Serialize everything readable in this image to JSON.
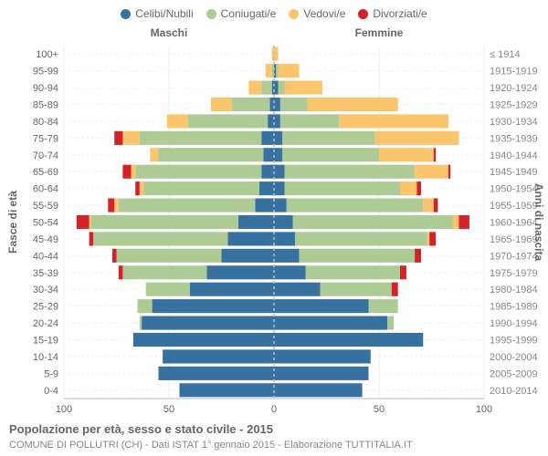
{
  "legend": [
    {
      "key": "celibi",
      "label": "Celibi/Nubili",
      "color": "#37719f"
    },
    {
      "key": "coniugati",
      "label": "Coniugati/e",
      "color": "#aecb95"
    },
    {
      "key": "vedovi",
      "label": "Vedovi/e",
      "color": "#fac56c"
    },
    {
      "key": "divorziati",
      "label": "Divorziati/e",
      "color": "#d2232a"
    }
  ],
  "headers": {
    "left": "Maschi",
    "right": "Femmine"
  },
  "axis": {
    "left_label": "Fasce di età",
    "right_label": "Anni di nascita",
    "xmax": 100,
    "xticks": [
      100,
      50,
      0,
      50,
      100
    ],
    "background": "#ffffff",
    "grid_color": "#eeeeee",
    "center_line": "#b8c0c7",
    "bar_height_ratio": 0.82
  },
  "rows": [
    {
      "age": "0-4",
      "year": "2010-2014",
      "M": {
        "cel": 45,
        "con": 0,
        "ved": 0,
        "div": 0
      },
      "F": {
        "cel": 42,
        "con": 0,
        "ved": 0,
        "div": 0
      }
    },
    {
      "age": "5-9",
      "year": "2005-2009",
      "M": {
        "cel": 55,
        "con": 0,
        "ved": 0,
        "div": 0
      },
      "F": {
        "cel": 45,
        "con": 0,
        "ved": 0,
        "div": 0
      }
    },
    {
      "age": "10-14",
      "year": "2000-2004",
      "M": {
        "cel": 53,
        "con": 0,
        "ved": 0,
        "div": 0
      },
      "F": {
        "cel": 46,
        "con": 0,
        "ved": 0,
        "div": 0
      }
    },
    {
      "age": "15-19",
      "year": "1995-1999",
      "M": {
        "cel": 67,
        "con": 0,
        "ved": 0,
        "div": 0
      },
      "F": {
        "cel": 71,
        "con": 0,
        "ved": 0,
        "div": 0
      }
    },
    {
      "age": "20-24",
      "year": "1990-1994",
      "M": {
        "cel": 63,
        "con": 1,
        "ved": 0,
        "div": 0
      },
      "F": {
        "cel": 54,
        "con": 3,
        "ved": 0,
        "div": 0
      }
    },
    {
      "age": "25-29",
      "year": "1985-1989",
      "M": {
        "cel": 58,
        "con": 7,
        "ved": 0,
        "div": 0
      },
      "F": {
        "cel": 45,
        "con": 14,
        "ved": 0,
        "div": 0
      }
    },
    {
      "age": "30-34",
      "year": "1980-1984",
      "M": {
        "cel": 40,
        "con": 21,
        "ved": 0,
        "div": 0
      },
      "F": {
        "cel": 22,
        "con": 34,
        "ved": 0,
        "div": 3
      }
    },
    {
      "age": "35-39",
      "year": "1975-1979",
      "M": {
        "cel": 32,
        "con": 40,
        "ved": 0,
        "div": 2
      },
      "F": {
        "cel": 15,
        "con": 45,
        "ved": 0,
        "div": 3
      }
    },
    {
      "age": "40-44",
      "year": "1970-1974",
      "M": {
        "cel": 25,
        "con": 50,
        "ved": 0,
        "div": 2
      },
      "F": {
        "cel": 12,
        "con": 55,
        "ved": 0,
        "div": 3
      }
    },
    {
      "age": "45-49",
      "year": "1965-1969",
      "M": {
        "cel": 22,
        "con": 64,
        "ved": 0,
        "div": 2
      },
      "F": {
        "cel": 10,
        "con": 63,
        "ved": 1,
        "div": 3
      }
    },
    {
      "age": "50-54",
      "year": "1960-1964",
      "M": {
        "cel": 17,
        "con": 70,
        "ved": 1,
        "div": 6
      },
      "F": {
        "cel": 9,
        "con": 76,
        "ved": 3,
        "div": 5
      }
    },
    {
      "age": "55-59",
      "year": "1955-1959",
      "M": {
        "cel": 9,
        "con": 65,
        "ved": 2,
        "div": 3
      },
      "F": {
        "cel": 6,
        "con": 65,
        "ved": 5,
        "div": 2
      }
    },
    {
      "age": "60-64",
      "year": "1950-1954",
      "M": {
        "cel": 7,
        "con": 55,
        "ved": 2,
        "div": 2
      },
      "F": {
        "cel": 5,
        "con": 55,
        "ved": 8,
        "div": 2
      }
    },
    {
      "age": "65-69",
      "year": "1945-1949",
      "M": {
        "cel": 6,
        "con": 60,
        "ved": 2,
        "div": 4
      },
      "F": {
        "cel": 5,
        "con": 62,
        "ved": 16,
        "div": 1
      }
    },
    {
      "age": "70-74",
      "year": "1940-1944",
      "M": {
        "cel": 5,
        "con": 50,
        "ved": 4,
        "div": 0
      },
      "F": {
        "cel": 4,
        "con": 46,
        "ved": 26,
        "div": 1
      }
    },
    {
      "age": "75-79",
      "year": "1935-1939",
      "M": {
        "cel": 6,
        "con": 58,
        "ved": 8,
        "div": 4
      },
      "F": {
        "cel": 4,
        "con": 44,
        "ved": 40,
        "div": 0
      }
    },
    {
      "age": "80-84",
      "year": "1930-1934",
      "M": {
        "cel": 3,
        "con": 38,
        "ved": 10,
        "div": 0
      },
      "F": {
        "cel": 3,
        "con": 28,
        "ved": 52,
        "div": 0
      }
    },
    {
      "age": "85-89",
      "year": "1925-1929",
      "M": {
        "cel": 2,
        "con": 18,
        "ved": 10,
        "div": 0
      },
      "F": {
        "cel": 3,
        "con": 13,
        "ved": 43,
        "div": 0
      }
    },
    {
      "age": "90-94",
      "year": "1920-1924",
      "M": {
        "cel": 1,
        "con": 5,
        "ved": 6,
        "div": 0
      },
      "F": {
        "cel": 2,
        "con": 3,
        "ved": 18,
        "div": 0
      }
    },
    {
      "age": "95-99",
      "year": "1915-1919",
      "M": {
        "cel": 0,
        "con": 1,
        "ved": 3,
        "div": 0
      },
      "F": {
        "cel": 1,
        "con": 1,
        "ved": 10,
        "div": 0
      }
    },
    {
      "age": "100+",
      "year": "≤ 1914",
      "M": {
        "cel": 0,
        "con": 0,
        "ved": 1,
        "div": 0
      },
      "F": {
        "cel": 0,
        "con": 0,
        "ved": 2,
        "div": 0
      }
    }
  ],
  "caption": {
    "line1": "Popolazione per età, sesso e stato civile - 2015",
    "line2": "COMUNE DI POLLUTRI (CH) - Dati ISTAT 1° gennaio 2015 - Elaborazione TUTTITALIA.IT"
  }
}
